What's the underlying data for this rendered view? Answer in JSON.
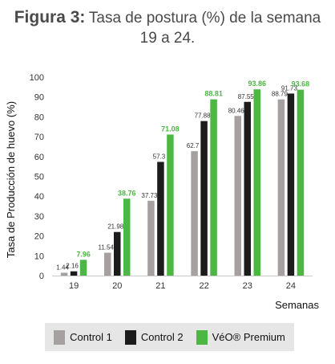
{
  "title": {
    "bold": "Figura 3:",
    "rest": "Tasa de postura (%) de la semana",
    "line2": "19 a 24."
  },
  "chart_data": {
    "type": "bar",
    "categories": [
      "19",
      "20",
      "21",
      "22",
      "23",
      "24"
    ],
    "series": [
      {
        "name": "Control 1",
        "color": "#a6a0a0",
        "values": [
          1.44,
          11.54,
          37.73,
          62.7,
          80.46,
          88.79
        ],
        "labels": [
          "1.44",
          "11.54",
          "37.73",
          "62.7",
          "80.46",
          "88.79"
        ]
      },
      {
        "name": "Control 2",
        "color": "#1c1c1c",
        "values": [
          2.16,
          21.98,
          57.3,
          77.88,
          87.55,
          91.73
        ],
        "labels": [
          "2.16",
          "21.98",
          "57.3",
          "77.88",
          "87.55",
          "91.73"
        ]
      },
      {
        "name": "VéO® Premium",
        "color": "#4cb843",
        "values": [
          7.96,
          38.76,
          71.08,
          88.81,
          93.86,
          93.68
        ],
        "labels": [
          "7.96",
          "38.76",
          "71.08",
          "88.81",
          "93.86",
          "93.68"
        ]
      }
    ],
    "ylabel": "Tasa de Producción de huevo (%)",
    "xlabel": "Semanas",
    "ylim": [
      0,
      100
    ],
    "yticks": [
      0,
      10,
      20,
      30,
      40,
      50,
      60,
      70,
      80,
      90,
      100
    ],
    "grid": false,
    "legend": "bottom"
  }
}
